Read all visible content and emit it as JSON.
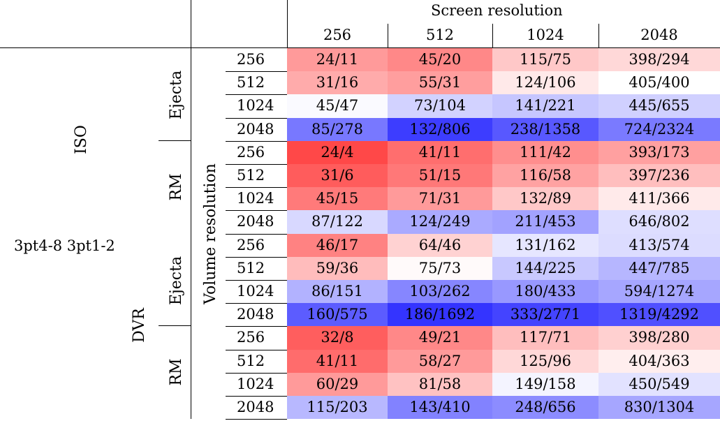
{
  "header": {
    "screen_resolution_label": "Screen resolution",
    "columns": [
      "256",
      "512",
      "1024",
      "2048"
    ]
  },
  "labels": {
    "volume_resolution": "Volume resolution",
    "iso": "ISO",
    "dvr": "DVR",
    "stray_text": "3pt4-8 3pt1-2"
  },
  "groups": [
    {
      "method": "ISO",
      "dataset": "Ejecta",
      "rows": [
        {
          "res": "256",
          "cells": [
            "24/11",
            "45/20",
            "115/75",
            "398/294"
          ],
          "colors": [
            "#ff9a9a",
            "#ff8888",
            "#ffc8c8",
            "#ffd8d8"
          ]
        },
        {
          "res": "512",
          "cells": [
            "31/16",
            "55/31",
            "124/106",
            "405/400"
          ],
          "colors": [
            "#ffabab",
            "#ff9e9e",
            "#ffe9e9",
            "#ffffff"
          ]
        },
        {
          "res": "1024",
          "cells": [
            "45/47",
            "73/104",
            "141/221",
            "445/655"
          ],
          "colors": [
            "#fafaff",
            "#d2d2ff",
            "#c6c6ff",
            "#d0d0ff"
          ]
        },
        {
          "res": "2048",
          "cells": [
            "85/278",
            "132/806",
            "238/1358",
            "724/2324"
          ],
          "colors": [
            "#7878ff",
            "#3d3dff",
            "#5858ff",
            "#7a7aff"
          ]
        }
      ]
    },
    {
      "method": "ISO",
      "dataset": "RM",
      "rows": [
        {
          "res": "256",
          "cells": [
            "24/4",
            "41/11",
            "111/42",
            "393/173"
          ],
          "colors": [
            "#ff4848",
            "#ff6e6e",
            "#ff8e8e",
            "#ffa0a0"
          ]
        },
        {
          "res": "512",
          "cells": [
            "31/6",
            "51/15",
            "116/58",
            "397/236"
          ],
          "colors": [
            "#ff5c5c",
            "#ff7878",
            "#ffa2a2",
            "#ffbebe"
          ]
        },
        {
          "res": "1024",
          "cells": [
            "45/15",
            "71/31",
            "132/89",
            "411/366"
          ],
          "colors": [
            "#ff7a7a",
            "#ff9a9a",
            "#ffc8c8",
            "#ffeaea"
          ]
        },
        {
          "res": "2048",
          "cells": [
            "87/122",
            "124/249",
            "211/453",
            "646/802"
          ],
          "colors": [
            "#d8d8ff",
            "#aaaaff",
            "#a2a2ff",
            "#dedeff"
          ]
        }
      ]
    },
    {
      "method": "DVR",
      "dataset": "Ejecta",
      "rows": [
        {
          "res": "256",
          "cells": [
            "46/17",
            "64/46",
            "131/162",
            "413/574"
          ],
          "colors": [
            "#ff8282",
            "#ffd2d2",
            "#e6e6ff",
            "#dcdcff"
          ]
        },
        {
          "res": "512",
          "cells": [
            "59/36",
            "75/73",
            "144/225",
            "447/785"
          ],
          "colors": [
            "#ffbcbc",
            "#fffafa",
            "#c8c8ff",
            "#b6b6ff"
          ]
        },
        {
          "res": "1024",
          "cells": [
            "86/151",
            "103/262",
            "180/433",
            "594/1274"
          ],
          "colors": [
            "#b2b2ff",
            "#8686ff",
            "#9898ff",
            "#a6a6ff"
          ]
        },
        {
          "res": "2048",
          "cells": [
            "160/575",
            "186/1692",
            "333/2771",
            "1319/4292"
          ],
          "colors": [
            "#5c5cff",
            "#3434ff",
            "#4444ff",
            "#5050ff"
          ]
        }
      ]
    },
    {
      "method": "DVR",
      "dataset": "RM",
      "rows": [
        {
          "res": "256",
          "cells": [
            "32/8",
            "49/21",
            "117/71",
            "398/280"
          ],
          "colors": [
            "#ff5e5e",
            "#ff8888",
            "#ffbebe",
            "#ffd0d0"
          ]
        },
        {
          "res": "512",
          "cells": [
            "41/11",
            "58/27",
            "125/96",
            "404/363"
          ],
          "colors": [
            "#ff6c6c",
            "#ff9a9a",
            "#ffd8d8",
            "#ffeeee"
          ]
        },
        {
          "res": "1024",
          "cells": [
            "60/29",
            "81/58",
            "149/158",
            "450/549"
          ],
          "colors": [
            "#ff9a9a",
            "#ffc2c2",
            "#f4f4ff",
            "#e2e2ff"
          ]
        },
        {
          "res": "2048",
          "cells": [
            "115/203",
            "143/410",
            "248/656",
            "830/1304"
          ],
          "colors": [
            "#b8b8ff",
            "#8282ff",
            "#8c8cff",
            "#a6a6ff"
          ]
        }
      ]
    }
  ]
}
